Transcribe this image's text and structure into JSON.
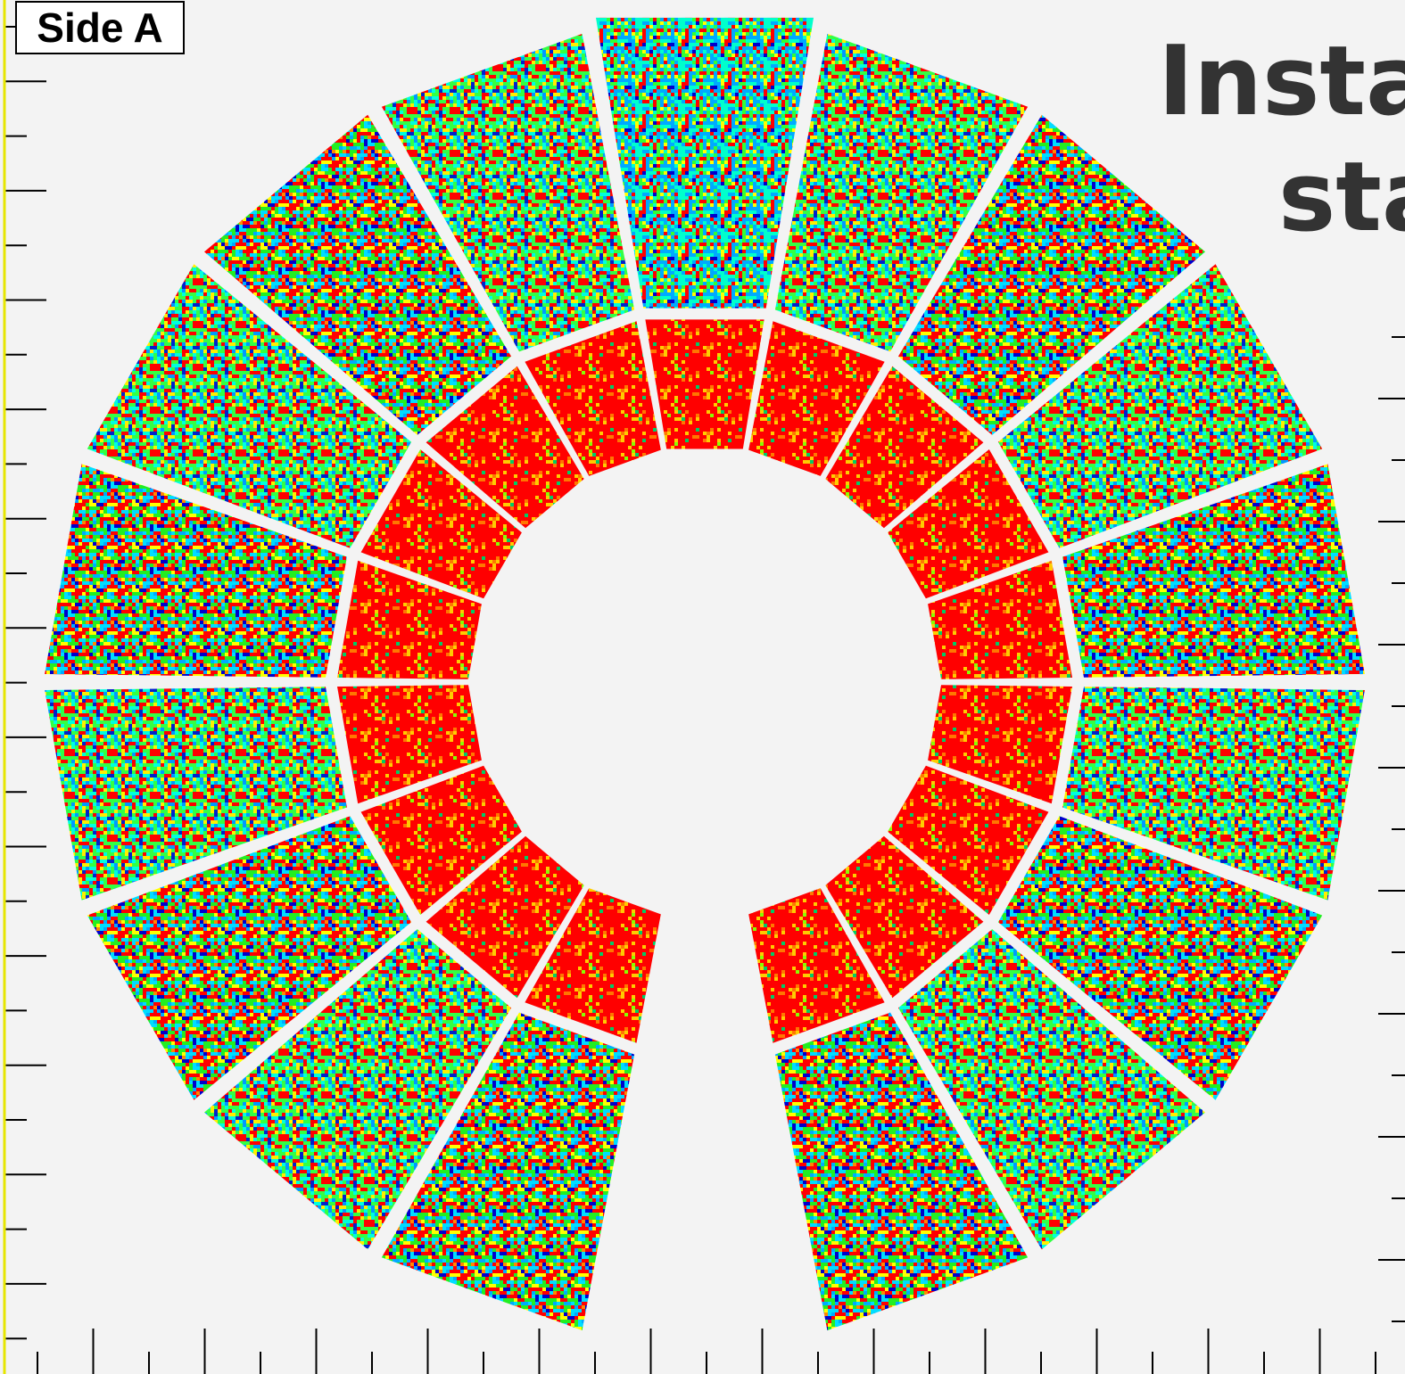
{
  "panel": {
    "label": "Side A"
  },
  "title": {
    "line1": "Insta",
    "line2": "sta"
  }
}
